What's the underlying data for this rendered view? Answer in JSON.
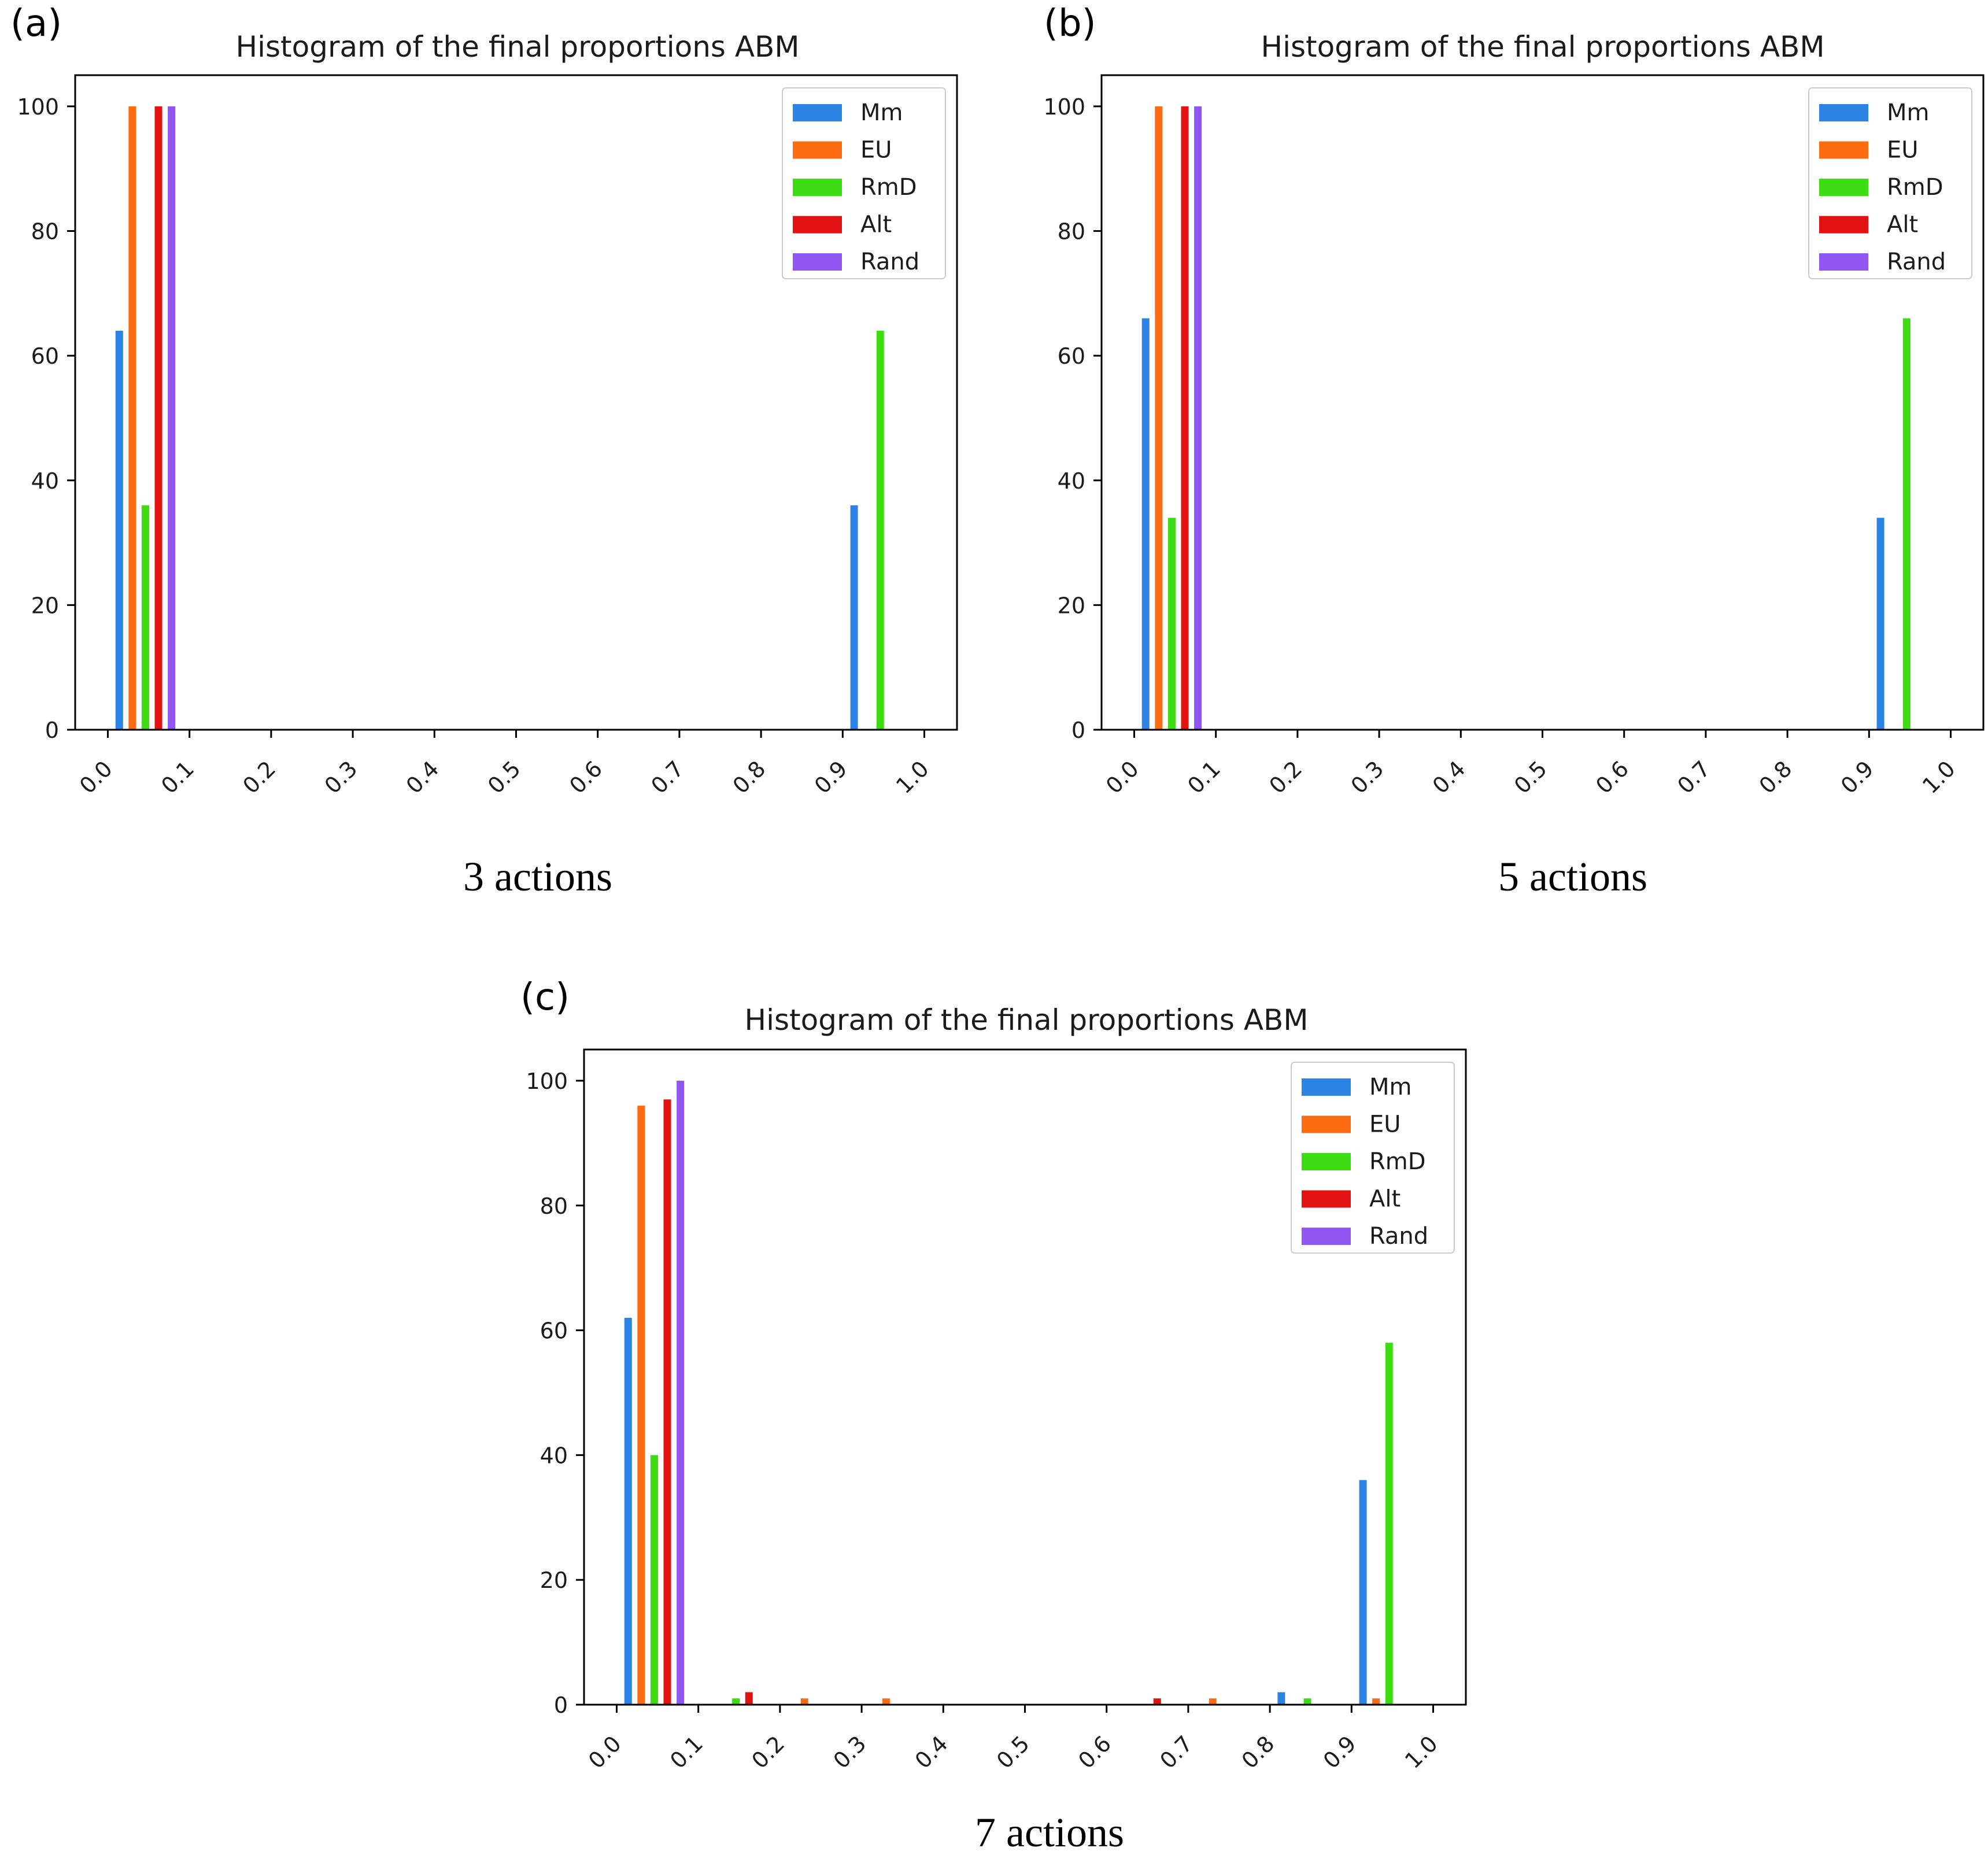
{
  "figure": {
    "panels": [
      {
        "letter": "(a)",
        "caption": "3 actions"
      },
      {
        "letter": "(b)",
        "caption": "5 actions"
      },
      {
        "letter": "(c)",
        "caption": "7 actions"
      }
    ]
  },
  "colors": {
    "Mm": "#2b83e4",
    "EU": "#fd6c12",
    "RmD": "#3edc13",
    "Alt": "#e01212",
    "Rand": "#8f56f2"
  },
  "chart_data": [
    {
      "type": "bar",
      "title": "Histogram of the final proportions ABM",
      "xlabel": "",
      "ylabel": "",
      "xlim": [
        -0.04,
        1.04
      ],
      "ylim": [
        0,
        105
      ],
      "xticks": [
        "0.0",
        "0.1",
        "0.2",
        "0.3",
        "0.4",
        "0.5",
        "0.6",
        "0.7",
        "0.8",
        "0.9",
        "1.0"
      ],
      "yticks": [
        "0",
        "20",
        "40",
        "60",
        "80",
        "100"
      ],
      "legend_position": "top-right",
      "series": [
        {
          "name": "Mm",
          "bars": [
            {
              "x": 0.0,
              "y": 64
            },
            {
              "x": 0.9,
              "y": 36
            }
          ]
        },
        {
          "name": "EU",
          "bars": [
            {
              "x": 0.0,
              "y": 100
            }
          ]
        },
        {
          "name": "RmD",
          "bars": [
            {
              "x": 0.0,
              "y": 36
            },
            {
              "x": 0.9,
              "y": 64
            }
          ]
        },
        {
          "name": "Alt",
          "bars": [
            {
              "x": 0.0,
              "y": 100
            }
          ]
        },
        {
          "name": "Rand",
          "bars": [
            {
              "x": 0.0,
              "y": 100
            }
          ]
        }
      ]
    },
    {
      "type": "bar",
      "title": "Histogram of the final proportions ABM",
      "xlabel": "",
      "ylabel": "",
      "xlim": [
        -0.04,
        1.04
      ],
      "ylim": [
        0,
        105
      ],
      "xticks": [
        "0.0",
        "0.1",
        "0.2",
        "0.3",
        "0.4",
        "0.5",
        "0.6",
        "0.7",
        "0.8",
        "0.9",
        "1.0"
      ],
      "yticks": [
        "0",
        "20",
        "40",
        "60",
        "80",
        "100"
      ],
      "legend_position": "top-right",
      "series": [
        {
          "name": "Mm",
          "bars": [
            {
              "x": 0.0,
              "y": 66
            },
            {
              "x": 0.9,
              "y": 34
            }
          ]
        },
        {
          "name": "EU",
          "bars": [
            {
              "x": 0.0,
              "y": 100
            }
          ]
        },
        {
          "name": "RmD",
          "bars": [
            {
              "x": 0.0,
              "y": 34
            },
            {
              "x": 0.9,
              "y": 66
            }
          ]
        },
        {
          "name": "Alt",
          "bars": [
            {
              "x": 0.0,
              "y": 100
            }
          ]
        },
        {
          "name": "Rand",
          "bars": [
            {
              "x": 0.0,
              "y": 100
            }
          ]
        }
      ]
    },
    {
      "type": "bar",
      "title": "Histogram of the final proportions ABM",
      "xlabel": "",
      "ylabel": "",
      "xlim": [
        -0.04,
        1.04
      ],
      "ylim": [
        0,
        105
      ],
      "xticks": [
        "0.0",
        "0.1",
        "0.2",
        "0.3",
        "0.4",
        "0.5",
        "0.6",
        "0.7",
        "0.8",
        "0.9",
        "1.0"
      ],
      "yticks": [
        "0",
        "20",
        "40",
        "60",
        "80",
        "100"
      ],
      "legend_position": "top-right",
      "series": [
        {
          "name": "Mm",
          "bars": [
            {
              "x": 0.0,
              "y": 62
            },
            {
              "x": 0.8,
              "y": 2
            },
            {
              "x": 0.9,
              "y": 36
            }
          ]
        },
        {
          "name": "EU",
          "bars": [
            {
              "x": 0.0,
              "y": 96
            },
            {
              "x": 0.2,
              "y": 1
            },
            {
              "x": 0.3,
              "y": 1
            },
            {
              "x": 0.7,
              "y": 1
            },
            {
              "x": 0.9,
              "y": 1
            }
          ]
        },
        {
          "name": "RmD",
          "bars": [
            {
              "x": 0.0,
              "y": 40
            },
            {
              "x": 0.1,
              "y": 1
            },
            {
              "x": 0.8,
              "y": 1
            },
            {
              "x": 0.9,
              "y": 58
            }
          ]
        },
        {
          "name": "Alt",
          "bars": [
            {
              "x": 0.0,
              "y": 97
            },
            {
              "x": 0.1,
              "y": 2
            },
            {
              "x": 0.6,
              "y": 1
            }
          ]
        },
        {
          "name": "Rand",
          "bars": [
            {
              "x": 0.0,
              "y": 100
            }
          ]
        }
      ]
    }
  ]
}
